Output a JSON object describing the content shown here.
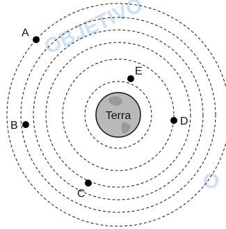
{
  "watermark": {
    "word": "OBJETIVO",
    "color": "#cfe0f3"
  },
  "earth": {
    "label": "Terra",
    "fill": "#b9b9b9",
    "land": "#9a9a9a"
  },
  "points": [
    {
      "id": "A",
      "label": "A"
    },
    {
      "id": "B",
      "label": "B"
    },
    {
      "id": "C",
      "label": "C"
    },
    {
      "id": "D",
      "label": "D"
    },
    {
      "id": "E",
      "label": "E"
    }
  ]
}
